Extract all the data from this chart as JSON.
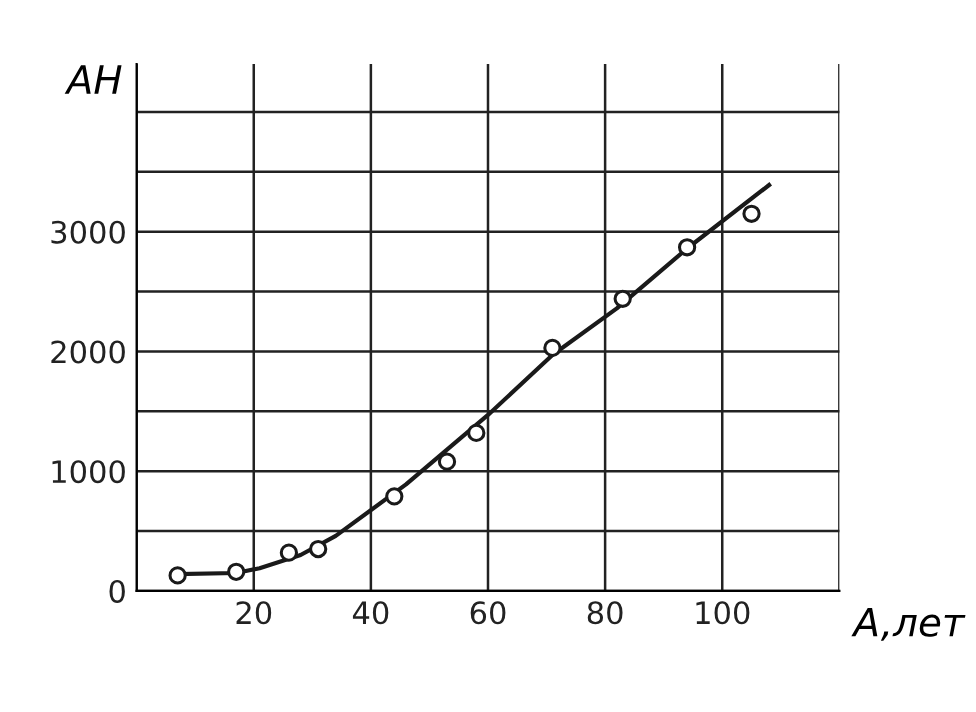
{
  "chart_data": {
    "type": "scatter",
    "ylabel": "AH",
    "xlabel": "A,лет",
    "xlim": [
      0,
      120
    ],
    "ylim": [
      0,
      4400
    ],
    "xticks": [
      {
        "value": 0,
        "label": null
      },
      20,
      40,
      60,
      80,
      100,
      {
        "value": 120,
        "label": null
      }
    ],
    "yticks": [
      0,
      {
        "value": 500,
        "label": null
      },
      1000,
      {
        "value": 1500,
        "label": null
      },
      2000,
      {
        "value": 2500,
        "label": null
      },
      3000,
      {
        "value": 3500,
        "label": null
      },
      {
        "value": 4000,
        "label": null
      }
    ],
    "grid": true,
    "series": [
      {
        "marker": "circle",
        "color": "#1a1a1a",
        "x": [
          7,
          17,
          26,
          31,
          44,
          53,
          58,
          71,
          83,
          94,
          105
        ],
        "values": [
          130,
          160,
          320,
          350,
          790,
          1080,
          1320,
          2030,
          2440,
          2870,
          3150
        ]
      },
      {
        "type": "line",
        "color": "#1a1a1a",
        "marker": "none",
        "line_style": "solid",
        "x": [
          7,
          17,
          21,
          28,
          34,
          46,
          60,
          71,
          82,
          94,
          108
        ],
        "values": [
          140,
          150,
          190,
          300,
          460,
          890,
          1470,
          1970,
          2360,
          2860,
          3390
        ]
      }
    ]
  }
}
